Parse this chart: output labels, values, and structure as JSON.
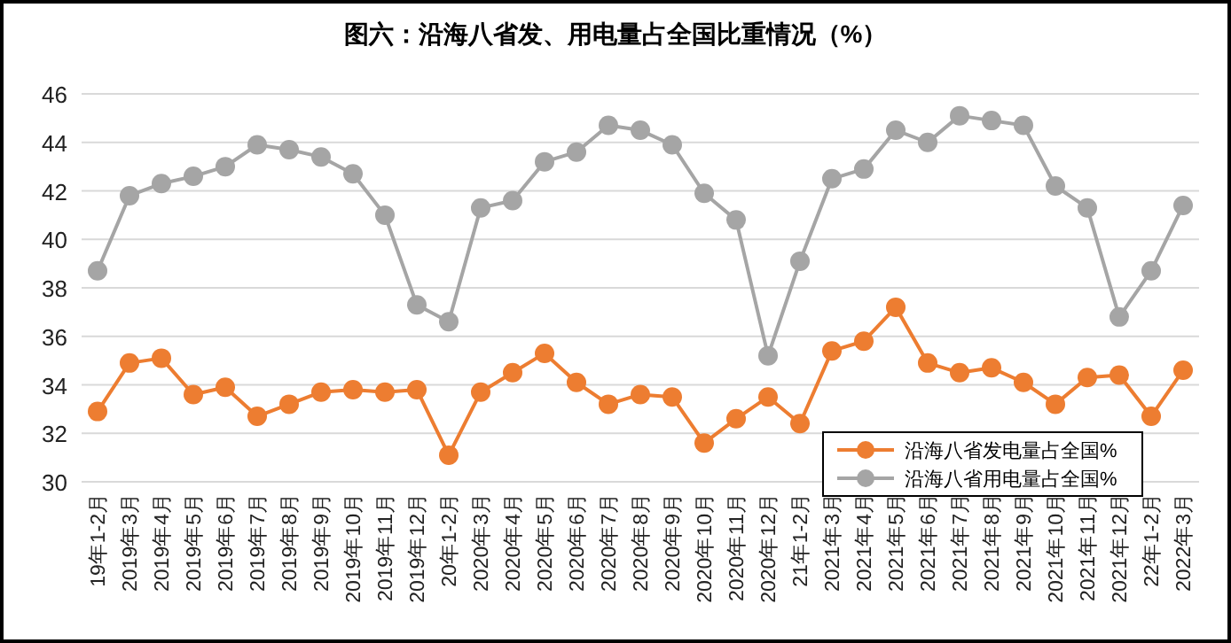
{
  "chart_data": {
    "type": "line",
    "title": "图六：沿海八省发、用电量占全国比重情况（%）",
    "categories": [
      "19年1-2月",
      "2019年3月",
      "2019年4月",
      "2019年5月",
      "2019年6月",
      "2019年7月",
      "2019年8月",
      "2019年9月",
      "2019年10月",
      "2019年11月",
      "2019年12月",
      "20年1-2月",
      "2020年3月",
      "2020年4月",
      "2020年5月",
      "2020年6月",
      "2020年7月",
      "2020年8月",
      "2020年9月",
      "2020年10月",
      "2020年11月",
      "2020年12月",
      "21年1-2月",
      "2021年3月",
      "2021年4月",
      "2021年5月",
      "2021年6月",
      "2021年7月",
      "2021年8月",
      "2021年9月",
      "2021年10月",
      "2021年11月",
      "2021年12月",
      "22年1-2月",
      "2022年3月"
    ],
    "series": [
      {
        "name": "沿海八省发电量占全国%",
        "color": "#ed7d31",
        "values": [
          32.9,
          34.9,
          35.1,
          33.6,
          33.9,
          32.7,
          33.2,
          33.7,
          33.8,
          33.7,
          33.8,
          31.1,
          33.7,
          34.5,
          35.3,
          34.1,
          33.2,
          33.6,
          33.5,
          31.6,
          32.6,
          33.5,
          32.4,
          35.4,
          35.8,
          37.2,
          34.9,
          34.5,
          34.7,
          34.1,
          33.2,
          34.3,
          34.4,
          32.7,
          34.6
        ]
      },
      {
        "name": "沿海八省用电量占全国%",
        "color": "#a5a5a5",
        "values": [
          38.7,
          41.8,
          42.3,
          42.6,
          43.0,
          43.9,
          43.7,
          43.4,
          42.7,
          41.0,
          37.3,
          36.6,
          41.3,
          41.6,
          43.2,
          43.6,
          44.7,
          44.5,
          43.9,
          41.9,
          40.8,
          35.2,
          39.1,
          42.5,
          42.9,
          44.5,
          44.0,
          45.1,
          44.9,
          44.7,
          42.2,
          41.3,
          36.8,
          38.7,
          41.4
        ]
      }
    ],
    "ylim": [
      30,
      46
    ],
    "yticks": [
      30,
      32,
      34,
      36,
      38,
      40,
      42,
      44,
      46
    ],
    "grid": "y",
    "legend": "bottom right",
    "marker": "circle",
    "line_style": "solid"
  }
}
